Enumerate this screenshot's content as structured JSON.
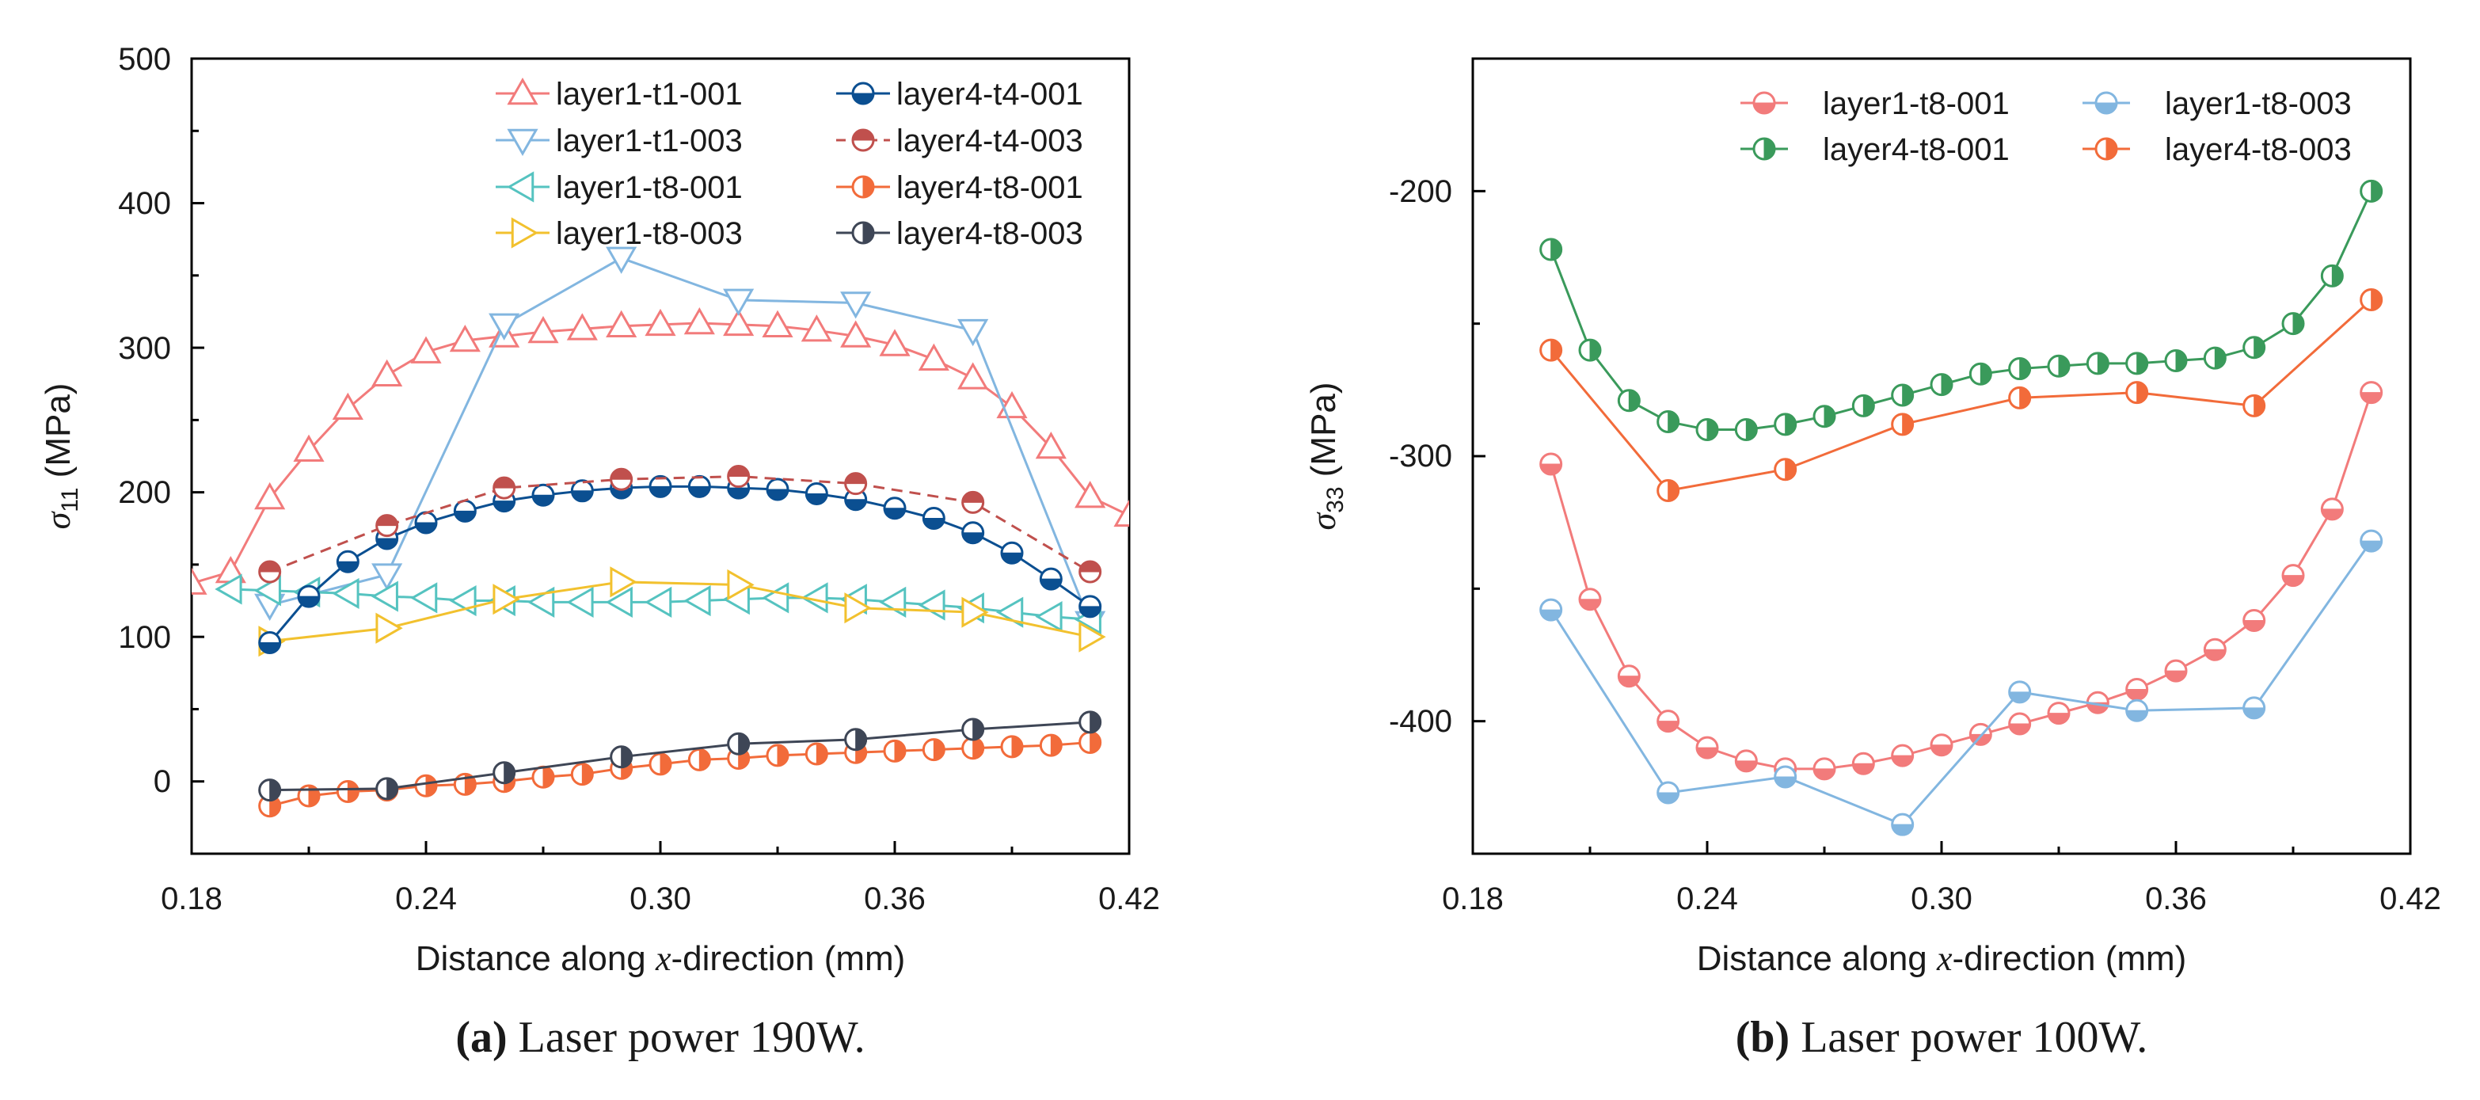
{
  "colors": {
    "pink": "#F27B7B",
    "lightblue": "#82B6E0",
    "cyan": "#55C3C0",
    "yellow": "#F2C12E",
    "navy": "#0B4F91",
    "darkred": "#C0504D",
    "orange": "#F26B3A",
    "slate": "#3E4656",
    "green": "#3A9A5B"
  },
  "chart_data": [
    {
      "id": "a",
      "type": "line",
      "caption_letter": "(a)",
      "caption_text": "Laser power 190W.",
      "xlabel_pre": "Distance along ",
      "xlabel_sym": "x",
      "xlabel_post": "-direction (mm)",
      "ylabel_sym": "σ",
      "ylabel_sub": "11",
      "ylabel_unit": " (MPa)",
      "xlim": [
        0.18,
        0.42
      ],
      "ylim": [
        -50,
        500
      ],
      "xticks": [
        "0.18",
        "0.24",
        "0.30",
        "0.36",
        "0.42"
      ],
      "yticks": [
        "0",
        "100",
        "200",
        "300",
        "400",
        "500"
      ],
      "legend_position": "top-right",
      "series": [
        {
          "name": "layer1-t1-001",
          "color": "pink",
          "marker": "triangle-up",
          "dash": false,
          "x": [
            0.18,
            0.19,
            0.2,
            0.21,
            0.22,
            0.23,
            0.24,
            0.25,
            0.26,
            0.27,
            0.28,
            0.29,
            0.3,
            0.31,
            0.32,
            0.33,
            0.34,
            0.35,
            0.36,
            0.37,
            0.38,
            0.39,
            0.4,
            0.41,
            0.42
          ],
          "y": [
            137,
            145,
            196,
            229,
            258,
            281,
            297,
            305,
            308,
            311,
            313,
            315,
            316,
            317,
            316,
            315,
            312,
            308,
            302,
            292,
            279,
            259,
            231,
            197,
            184
          ]
        },
        {
          "name": "layer1-t1-003",
          "color": "lightblue",
          "marker": "triangle-down",
          "dash": false,
          "x": [
            0.2,
            0.23,
            0.26,
            0.29,
            0.32,
            0.35,
            0.38,
            0.41
          ],
          "y": [
            122,
            143,
            316,
            362,
            333,
            331,
            312,
            110
          ]
        },
        {
          "name": "layer1-t8-001",
          "color": "cyan",
          "marker": "triangle-left",
          "dash": false,
          "x": [
            0.19,
            0.2,
            0.21,
            0.22,
            0.23,
            0.24,
            0.25,
            0.26,
            0.27,
            0.28,
            0.29,
            0.3,
            0.31,
            0.32,
            0.33,
            0.34,
            0.35,
            0.36,
            0.37,
            0.38,
            0.39,
            0.4,
            0.41
          ],
          "y": [
            133,
            132,
            131,
            130,
            128,
            127,
            125,
            125,
            124,
            124,
            124,
            124,
            125,
            126,
            127,
            127,
            126,
            124,
            122,
            120,
            117,
            114,
            112
          ]
        },
        {
          "name": "layer1-t8-003",
          "color": "yellow",
          "marker": "triangle-right",
          "dash": false,
          "x": [
            0.2,
            0.23,
            0.26,
            0.29,
            0.32,
            0.35,
            0.38,
            0.41
          ],
          "y": [
            97,
            106,
            126,
            138,
            136,
            120,
            117,
            100
          ]
        },
        {
          "name": "layer4-t4-001",
          "color": "navy",
          "marker": "circle-bottom",
          "dash": false,
          "x": [
            0.2,
            0.21,
            0.22,
            0.23,
            0.24,
            0.25,
            0.26,
            0.27,
            0.28,
            0.29,
            0.3,
            0.31,
            0.32,
            0.33,
            0.34,
            0.35,
            0.36,
            0.37,
            0.38,
            0.39,
            0.4,
            0.41
          ],
          "y": [
            96,
            128,
            152,
            168,
            179,
            187,
            194,
            198,
            201,
            203,
            204,
            204,
            203,
            202,
            199,
            195,
            189,
            182,
            172,
            158,
            140,
            121
          ]
        },
        {
          "name": "layer4-t4-003",
          "color": "darkred",
          "marker": "circle-top",
          "dash": true,
          "x": [
            0.2,
            0.23,
            0.26,
            0.29,
            0.32,
            0.35,
            0.38,
            0.41
          ],
          "y": [
            145,
            177,
            203,
            209,
            211,
            206,
            193,
            145
          ]
        },
        {
          "name": "layer4-t8-001",
          "color": "orange",
          "marker": "circle-right",
          "dash": false,
          "x": [
            0.2,
            0.21,
            0.22,
            0.23,
            0.24,
            0.25,
            0.26,
            0.27,
            0.28,
            0.29,
            0.3,
            0.31,
            0.32,
            0.33,
            0.34,
            0.35,
            0.36,
            0.37,
            0.38,
            0.39,
            0.4,
            0.41
          ],
          "y": [
            -17,
            -10,
            -7,
            -6,
            -3,
            -2,
            0,
            3,
            5,
            9,
            12,
            15,
            16,
            18,
            19,
            20,
            21,
            22,
            23,
            24,
            25,
            27
          ]
        },
        {
          "name": "layer4-t8-003",
          "color": "slate",
          "marker": "circle-right",
          "dash": false,
          "x": [
            0.2,
            0.23,
            0.26,
            0.29,
            0.32,
            0.35,
            0.38,
            0.41
          ],
          "y": [
            -6,
            -5,
            6,
            17,
            26,
            29,
            36,
            41
          ]
        }
      ]
    },
    {
      "id": "b",
      "type": "line",
      "caption_letter": "(b)",
      "caption_text": "Laser power 100W.",
      "xlabel_pre": "Distance along ",
      "xlabel_sym": "x",
      "xlabel_post": "-direction (mm)",
      "ylabel_sym": "σ",
      "ylabel_sub": "33",
      "ylabel_unit": " (MPa)",
      "xlim": [
        0.18,
        0.42
      ],
      "ylim": [
        -450,
        -150
      ],
      "xticks": [
        "0.18",
        "0.24",
        "0.30",
        "0.36",
        "0.42"
      ],
      "yticks": [
        "-400",
        "-300",
        "-200"
      ],
      "legend_position": "top-right",
      "series": [
        {
          "name": "layer1-t8-001",
          "color": "pink",
          "marker": "circle-bottom",
          "dash": false,
          "x": [
            0.2,
            0.21,
            0.22,
            0.23,
            0.24,
            0.25,
            0.26,
            0.27,
            0.28,
            0.29,
            0.3,
            0.31,
            0.32,
            0.33,
            0.34,
            0.35,
            0.36,
            0.37,
            0.38,
            0.39,
            0.4,
            0.41
          ],
          "y": [
            -303,
            -354,
            -383,
            -400,
            -410,
            -415,
            -418,
            -418,
            -416,
            -413,
            -409,
            -405,
            -401,
            -397,
            -393,
            -388,
            -381,
            -373,
            -362,
            -345,
            -320,
            -276
          ]
        },
        {
          "name": "layer1-t8-003",
          "color": "lightblue",
          "marker": "circle-bottom",
          "dash": false,
          "x": [
            0.2,
            0.23,
            0.26,
            0.29,
            0.32,
            0.35,
            0.38,
            0.41
          ],
          "y": [
            -358,
            -427,
            -421,
            -439,
            -389,
            -396,
            -395,
            -332
          ]
        },
        {
          "name": "layer4-t8-001",
          "color": "green",
          "marker": "circle-right",
          "dash": false,
          "x": [
            0.2,
            0.21,
            0.22,
            0.23,
            0.24,
            0.25,
            0.26,
            0.27,
            0.28,
            0.29,
            0.3,
            0.31,
            0.32,
            0.33,
            0.34,
            0.35,
            0.36,
            0.37,
            0.38,
            0.39,
            0.4,
            0.41
          ],
          "y": [
            -222,
            -260,
            -279,
            -287,
            -290,
            -290,
            -288,
            -285,
            -281,
            -277,
            -273,
            -269,
            -267,
            -266,
            -265,
            -265,
            -264,
            -263,
            -259,
            -250,
            -232,
            -200
          ]
        },
        {
          "name": "layer4-t8-003",
          "color": "orange",
          "marker": "circle-right",
          "dash": false,
          "x": [
            0.2,
            0.23,
            0.26,
            0.29,
            0.32,
            0.35,
            0.38,
            0.41
          ],
          "y": [
            -260,
            -313,
            -305,
            -288,
            -278,
            -276,
            -281,
            -241
          ]
        }
      ]
    }
  ]
}
